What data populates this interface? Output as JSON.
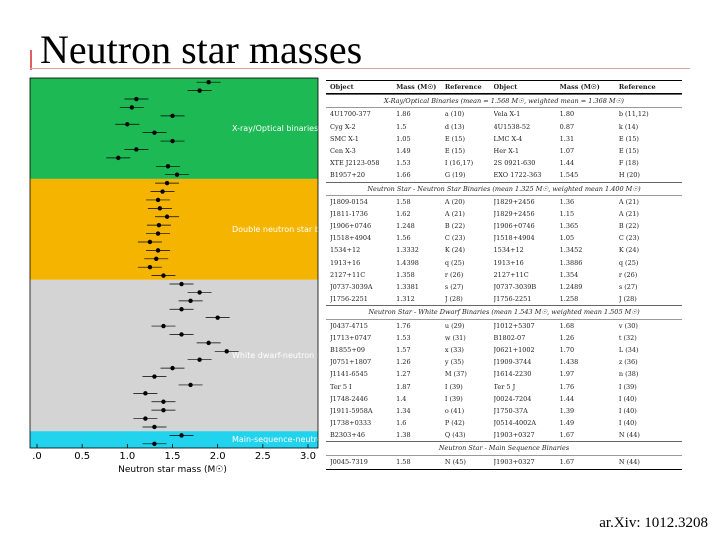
{
  "title": "Neutron star masses",
  "citation": "ar.Xiv: 1012.3208",
  "plot": {
    "xlabel": "Neutron star mass (M☉)",
    "xlim": [
      0,
      3
    ],
    "xticks": [
      {
        "value": 0,
        "label": ".0"
      },
      {
        "value": 0.5,
        "label": "0.5"
      },
      {
        "value": 1,
        "label": "1.0"
      },
      {
        "value": 1.5,
        "label": "1.5"
      },
      {
        "value": 2,
        "label": "2.0"
      },
      {
        "value": 2.5,
        "label": "2.5"
      },
      {
        "value": 3,
        "label": "3.0"
      }
    ],
    "groups": [
      {
        "label": "X-ray/Optical binaries",
        "color": "#1db954",
        "values": [
          1.9,
          1.8,
          1.1,
          1.05,
          1.5,
          1.0,
          1.3,
          1.5,
          1.1,
          0.9,
          1.45,
          1.55
        ]
      },
      {
        "label": "Double neutron star binaries",
        "color": "#f5b400",
        "values": [
          1.44,
          1.39,
          1.34,
          1.36,
          1.44,
          1.35,
          1.34,
          1.25,
          1.34,
          1.32,
          1.25,
          1.4
        ]
      },
      {
        "label": "White dwarf-neutron star binaries",
        "color": "#d4d4d4",
        "values": [
          1.6,
          1.8,
          1.7,
          1.6,
          2.0,
          1.4,
          1.6,
          1.9,
          2.1,
          1.8,
          1.5,
          1.3,
          1.7,
          1.2,
          1.4,
          1.4,
          1.2,
          1.3
        ]
      },
      {
        "label": "Main-sequence-neutron star binaries",
        "color": "#22d3ee",
        "values": [
          1.6,
          1.3
        ]
      }
    ]
  },
  "table": {
    "header": [
      "Object",
      "Mass (M☉)",
      "Reference",
      "Object",
      "Mass (M☉)",
      "Reference"
    ],
    "sections": [
      {
        "heading": "X-Ray/Optical Binaries (mean = 1.568 M☉, weighted mean = 1.368 M☉)",
        "rows": [
          [
            "4U1700-377",
            "1.86",
            "a (10)",
            "Vela X-1",
            "1.80",
            "b (11,12)"
          ],
          [
            "Cyg X-2",
            "1.5",
            "d (13)",
            "4U1538-52",
            "0.87",
            "k (14)"
          ],
          [
            "SMC X-1",
            "1.05",
            "E (15)",
            "LMC X-4",
            "1.31",
            "E (15)"
          ],
          [
            "Cen X-3",
            "1.49",
            "E (15)",
            "Her X-1",
            "1.07",
            "E (15)"
          ],
          [
            "XTE J2123-058",
            "1.53",
            "I (16,17)",
            "2S 0921-630",
            "1.44",
            "F (18)"
          ],
          [
            "B1957+20",
            "1.66",
            "G (19)",
            "EXO 1722-363",
            "1.545",
            "H (20)"
          ]
        ]
      },
      {
        "heading": "Neutron Star - Neutron Star Binaries (mean 1.325 M☉, weighted mean 1.400 M☉)",
        "rows": [
          [
            "J1809-0154",
            "1.58",
            "A (20)",
            "J1829+2456",
            "1.36",
            "A (21)"
          ],
          [
            "J1811-1736",
            "1.62",
            "A (21)",
            "J1829+2456",
            "1.15",
            "A (21)"
          ],
          [
            "J1906+0746",
            "1.248",
            "B (22)",
            "J1906+0746",
            "1.365",
            "B (22)"
          ],
          [
            "J1518+4904",
            "1.56",
            "C (23)",
            "J1518+4904",
            "1.05",
            "C (23)"
          ],
          [
            "1534+12",
            "1.3332",
            "K (24)",
            "1534+12",
            "1.3452",
            "K (24)"
          ],
          [
            "1913+16",
            "1.4398",
            "q (25)",
            "1913+16",
            "1.3886",
            "q (25)"
          ],
          [
            "2127+11C",
            "1.358",
            "r (26)",
            "2127+11C",
            "1.354",
            "r (26)"
          ],
          [
            "J0737-3039A",
            "1.3381",
            "s (27)",
            "J0737-3039B",
            "1.2489",
            "s (27)"
          ],
          [
            "J1756-2251",
            "1.312",
            "J (28)",
            "J1756-2251",
            "1.258",
            "J (28)"
          ]
        ]
      },
      {
        "heading": "Neutron Star - White Dwarf Binaries (mean 1.543 M☉, weighted mean 1.505 M☉)",
        "rows": [
          [
            "J0437-4715",
            "1.76",
            "u (29)",
            "J1012+5307",
            "1.68",
            "v (30)"
          ],
          [
            "J1713+0747",
            "1.53",
            "w (31)",
            "B1802-07",
            "1.26",
            "t (32)"
          ],
          [
            "B1855+09",
            "1.57",
            "x (33)",
            "J0621+1002",
            "1.70",
            "L (34)"
          ],
          [
            "J0751+1807",
            "1.26",
            "y (35)",
            "J1909-3744",
            "1.438",
            "z (36)"
          ],
          [
            "J1141-6545",
            "1.27",
            "M (37)",
            "J1614-2230",
            "1.97",
            "n (38)"
          ],
          [
            "Ter 5 I",
            "1.87",
            "I (39)",
            "Ter 5 J",
            "1.76",
            "I (39)"
          ],
          [
            "J1748-2446",
            "1.4",
            "I (39)",
            "J0024-7204",
            "1.44",
            "I (40)"
          ],
          [
            "J1911-5958A",
            "1.34",
            "o (41)",
            "J1750-37A",
            "1.39",
            "I (40)"
          ],
          [
            "J1738+0333",
            "1.6",
            "P (42)",
            "J0514-4002A",
            "1.49",
            "I (40)"
          ],
          [
            "B2303+46",
            "1.38",
            "Q (43)",
            "J1903+0327",
            "1.67",
            "N (44)"
          ]
        ]
      },
      {
        "heading": "Neutron Star - Main Sequence Binaries",
        "rows": [
          [
            "J0045-7319",
            "1.58",
            "N (45)",
            "J1903+0327",
            "1.67",
            "N (44)"
          ]
        ]
      }
    ]
  }
}
